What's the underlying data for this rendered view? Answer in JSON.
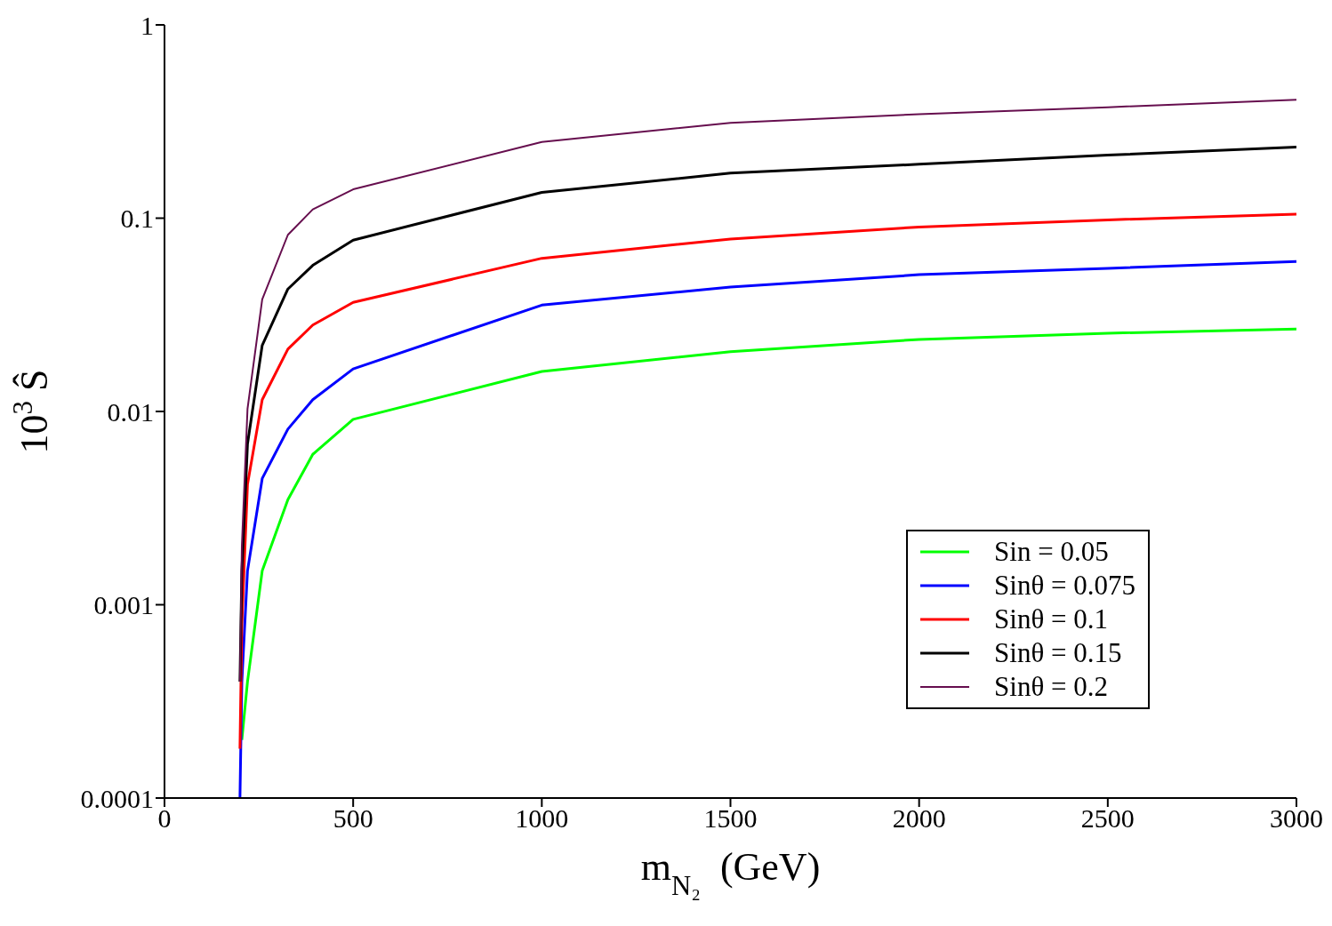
{
  "chart_data": {
    "type": "line",
    "xlabel": "m$_{N₂}$  (GeV)",
    "ylabel": "10$^{3}$ Ŝ",
    "x": [
      200,
      205,
      220,
      259,
      327,
      393,
      500,
      1000,
      1500,
      2000,
      2500,
      3000
    ],
    "series": [
      {
        "name": "Sin = 0.05",
        "color": "#00ff00",
        "values": [
          null,
          0.0002,
          0.0004,
          0.0015,
          0.0035,
          0.006,
          0.0091,
          0.0161,
          0.0204,
          0.0236,
          0.0254,
          0.0267
        ]
      },
      {
        "name": "Sinθ = 0.075",
        "color": "#0000ff",
        "values": [
          0.0001,
          0.0004,
          0.0015,
          0.0045,
          0.0081,
          0.0115,
          0.0166,
          0.0355,
          0.044,
          0.051,
          0.055,
          0.0597
        ]
      },
      {
        "name": "Sinθ = 0.1",
        "color": "#ff0000",
        "values": [
          0.00018,
          0.0008,
          0.0042,
          0.0115,
          0.021,
          0.028,
          0.0367,
          0.062,
          0.078,
          0.09,
          0.098,
          0.105
        ]
      },
      {
        "name": "Sinθ = 0.15",
        "color": "#000000",
        "values": [
          0.0004,
          0.0015,
          0.0068,
          0.022,
          0.043,
          0.057,
          0.077,
          0.136,
          0.171,
          0.19,
          0.212,
          0.233
        ]
      },
      {
        "name": "Sinθ = 0.2",
        "color": "#660e4e",
        "values": [
          0.0004,
          0.002,
          0.0103,
          0.038,
          0.082,
          0.111,
          0.141,
          0.248,
          0.311,
          0.345,
          0.375,
          0.41
        ]
      }
    ],
    "xlim": [
      0,
      3000
    ],
    "xticks": [
      0,
      500,
      1000,
      1500,
      2000,
      2500,
      3000
    ],
    "ylim": [
      0.0001,
      1
    ],
    "yticks": [
      0.0001,
      0.001,
      0.01,
      0.1,
      1
    ],
    "log": "y",
    "grid": false,
    "legend": "bottom right",
    "marker": "none",
    "line_style": "solid"
  }
}
